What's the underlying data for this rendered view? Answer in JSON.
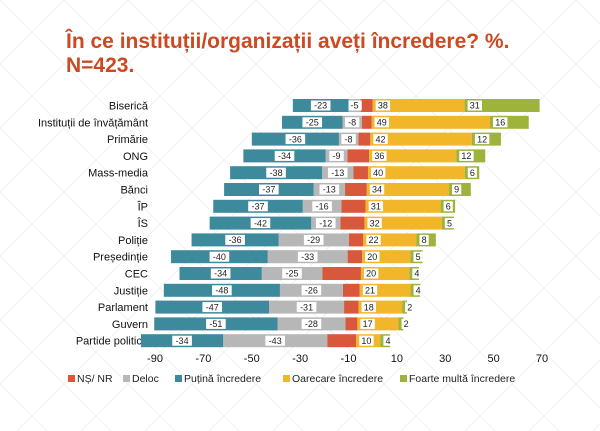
{
  "title": {
    "line1": "În ce instituții/organizații aveți încredere? %.",
    "line2": "N=423."
  },
  "chart_data": {
    "type": "bar",
    "orientation": "horizontal-diverging-stacked",
    "categories": [
      "Biserică",
      "Instituții de învățământ",
      "Primărie",
      "ONG",
      "Mass-media",
      "Bănci",
      "ÎP",
      "ÎS",
      "Poliție",
      "Președinție",
      "CEC",
      "Justiție",
      "Parlament",
      "Guvern",
      "Partide politice"
    ],
    "series": [
      {
        "name": "NȘ/ NR",
        "color": "#d9573b",
        "values": [
          -5,
          -4,
          -5,
          -9,
          -6,
          -9,
          -10,
          -10,
          -6,
          -6,
          -16,
          -7,
          -6,
          -5,
          -12
        ]
      },
      {
        "name": "Deloc",
        "color": "#b7b7b7",
        "values": [
          -5,
          -8,
          -8,
          -9,
          -13,
          -13,
          -16,
          -12,
          -29,
          -33,
          -25,
          -26,
          -31,
          -28,
          -43
        ]
      },
      {
        "name": "Puțină încredere",
        "color": "#3d8a9c",
        "values": [
          -23,
          -25,
          -36,
          -34,
          -38,
          -37,
          -37,
          -42,
          -36,
          -40,
          -34,
          -48,
          -47,
          -51,
          -34
        ]
      },
      {
        "name": "Oarecare încredere",
        "color": "#f2b62b",
        "values": [
          38,
          49,
          42,
          36,
          40,
          34,
          31,
          32,
          22,
          20,
          20,
          21,
          18,
          17,
          10
        ]
      },
      {
        "name": "Foarte multă încredere",
        "color": "#9db33b",
        "values": [
          31,
          16,
          12,
          12,
          6,
          9,
          6,
          5,
          8,
          5,
          4,
          4,
          2,
          2,
          4
        ]
      }
    ],
    "label_series": [
      "Deloc",
      "Puțină încredere",
      "Oarecare încredere",
      "Foarte multă încredere"
    ],
    "xlim": [
      -90,
      70
    ],
    "xticks": [
      -90,
      -70,
      -50,
      -30,
      -10,
      10,
      30,
      50,
      70
    ],
    "legend_position": "bottom"
  }
}
